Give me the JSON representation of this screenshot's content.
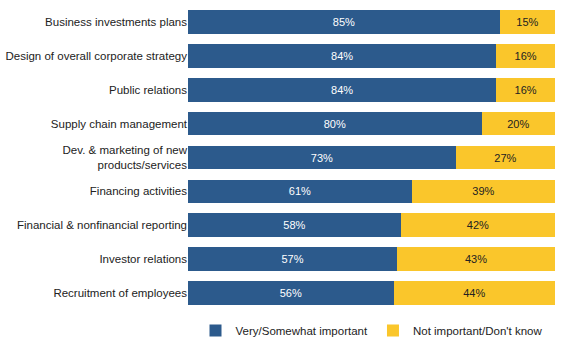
{
  "chart_data": {
    "type": "bar",
    "orientation": "horizontal",
    "stacked": true,
    "data_labels": true,
    "tick_labels": "y",
    "grid": false,
    "legend": "bottom",
    "categories": [
      "Business investments plans",
      "Design of overall corporate strategy",
      "Public relations",
      "Supply chain management",
      "Dev. & marketing of new products/services",
      "Financing activities",
      "Financial & nonfinancial reporting",
      "Investor relations",
      "Recruitment of employees"
    ],
    "xlim": [
      0,
      100
    ],
    "series": [
      {
        "name": "Very/Somewhat important",
        "color": "#2c5a8c",
        "values": [
          85,
          84,
          84,
          80,
          73,
          61,
          58,
          57,
          56
        ],
        "value_labels": [
          "85%",
          "84%",
          "84%",
          "80%",
          "73%",
          "61%",
          "58%",
          "57%",
          "56%"
        ]
      },
      {
        "name": "Not important/Don't know",
        "color": "#fac62b",
        "values": [
          15,
          16,
          16,
          20,
          27,
          39,
          42,
          43,
          44
        ],
        "value_labels": [
          "15%",
          "16%",
          "16%",
          "20%",
          "27%",
          "39%",
          "42%",
          "43%",
          "44%"
        ]
      }
    ]
  }
}
